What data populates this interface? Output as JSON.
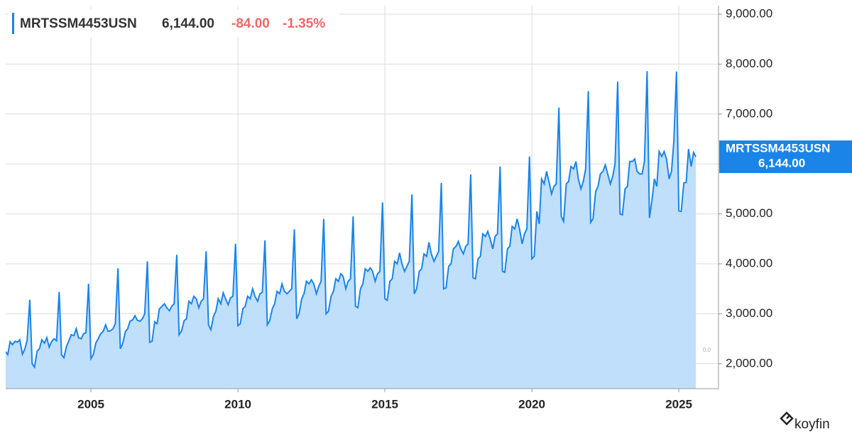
{
  "chart_data": {
    "type": "area",
    "x": [
      2002.08,
      2002.17,
      2002.25,
      2002.33,
      2002.42,
      2002.5,
      2002.58,
      2002.67,
      2002.75,
      2002.83,
      2002.92,
      2003.0,
      2003.08,
      2003.17,
      2003.25,
      2003.33,
      2003.42,
      2003.5,
      2003.58,
      2003.67,
      2003.75,
      2003.83,
      2003.92,
      2004.0,
      2004.08,
      2004.17,
      2004.25,
      2004.33,
      2004.42,
      2004.5,
      2004.58,
      2004.67,
      2004.75,
      2004.83,
      2004.92,
      2005.0,
      2005.08,
      2005.17,
      2005.25,
      2005.33,
      2005.42,
      2005.5,
      2005.58,
      2005.67,
      2005.75,
      2005.83,
      2005.92,
      2006.0,
      2006.08,
      2006.17,
      2006.25,
      2006.33,
      2006.42,
      2006.5,
      2006.58,
      2006.67,
      2006.75,
      2006.83,
      2006.92,
      2007.0,
      2007.08,
      2007.17,
      2007.25,
      2007.33,
      2007.42,
      2007.5,
      2007.58,
      2007.67,
      2007.75,
      2007.83,
      2007.92,
      2008.0,
      2008.08,
      2008.17,
      2008.25,
      2008.33,
      2008.42,
      2008.5,
      2008.58,
      2008.67,
      2008.75,
      2008.83,
      2008.92,
      2009.0,
      2009.08,
      2009.17,
      2009.25,
      2009.33,
      2009.42,
      2009.5,
      2009.58,
      2009.67,
      2009.75,
      2009.83,
      2009.92,
      2010.0,
      2010.08,
      2010.17,
      2010.25,
      2010.33,
      2010.42,
      2010.5,
      2010.58,
      2010.67,
      2010.75,
      2010.83,
      2010.92,
      2011.0,
      2011.08,
      2011.17,
      2011.25,
      2011.33,
      2011.42,
      2011.5,
      2011.58,
      2011.67,
      2011.75,
      2011.83,
      2011.92,
      2012.0,
      2012.08,
      2012.17,
      2012.25,
      2012.33,
      2012.42,
      2012.5,
      2012.58,
      2012.67,
      2012.75,
      2012.83,
      2012.92,
      2013.0,
      2013.08,
      2013.17,
      2013.25,
      2013.33,
      2013.42,
      2013.5,
      2013.58,
      2013.67,
      2013.75,
      2013.83,
      2013.92,
      2014.0,
      2014.08,
      2014.17,
      2014.25,
      2014.33,
      2014.42,
      2014.5,
      2014.58,
      2014.67,
      2014.75,
      2014.83,
      2014.92,
      2015.0,
      2015.08,
      2015.17,
      2015.25,
      2015.33,
      2015.42,
      2015.5,
      2015.58,
      2015.67,
      2015.75,
      2015.83,
      2015.92,
      2016.0,
      2016.08,
      2016.17,
      2016.25,
      2016.33,
      2016.42,
      2016.5,
      2016.58,
      2016.67,
      2016.75,
      2016.83,
      2016.92,
      2017.0,
      2017.08,
      2017.17,
      2017.25,
      2017.33,
      2017.42,
      2017.5,
      2017.58,
      2017.67,
      2017.75,
      2017.83,
      2017.92,
      2018.0,
      2018.08,
      2018.17,
      2018.25,
      2018.33,
      2018.42,
      2018.5,
      2018.58,
      2018.67,
      2018.75,
      2018.83,
      2018.92,
      2019.0,
      2019.08,
      2019.17,
      2019.25,
      2019.33,
      2019.42,
      2019.5,
      2019.58,
      2019.67,
      2019.75,
      2019.83,
      2019.92,
      2020.0,
      2020.08,
      2020.17,
      2020.25,
      2020.33,
      2020.42,
      2020.5,
      2020.58,
      2020.67,
      2020.75,
      2020.83,
      2020.92,
      2021.0,
      2021.08,
      2021.17,
      2021.25,
      2021.33,
      2021.42,
      2021.5,
      2021.58,
      2021.67,
      2021.75,
      2021.83,
      2021.92,
      2022.0,
      2022.08,
      2022.17,
      2022.25,
      2022.33,
      2022.42,
      2022.5,
      2022.58,
      2022.67,
      2022.75,
      2022.83,
      2022.92,
      2023.0,
      2023.08,
      2023.17,
      2023.25,
      2023.33,
      2023.42,
      2023.5,
      2023.58,
      2023.67,
      2023.75,
      2023.83,
      2023.92,
      2024.0,
      2024.08,
      2024.17,
      2024.25,
      2024.33,
      2024.42,
      2024.5,
      2024.58,
      2024.67,
      2024.75,
      2024.83,
      2024.92,
      2025.0,
      2025.08,
      2025.17,
      2025.25,
      2025.33,
      2025.42,
      2025.5,
      2025.58
    ],
    "series": [
      {
        "name": "MRTSSM4453USN",
        "color": "#1a84e8",
        "fill": "#bfdffb",
        "values": [
          2250,
          2180,
          2440,
          2380,
          2450,
          2430,
          2480,
          2190,
          2290,
          2470,
          3280,
          2000,
          1930,
          2250,
          2300,
          2480,
          2410,
          2520,
          2330,
          2450,
          2500,
          2460,
          3440,
          2180,
          2120,
          2350,
          2460,
          2580,
          2560,
          2700,
          2520,
          2500,
          2600,
          2620,
          3600,
          2100,
          2180,
          2420,
          2500,
          2600,
          2650,
          2780,
          2650,
          2660,
          2700,
          2800,
          3910,
          2300,
          2400,
          2640,
          2700,
          2850,
          2880,
          2960,
          2870,
          2850,
          2900,
          3000,
          4050,
          2430,
          2450,
          2840,
          2800,
          3100,
          3150,
          3200,
          3120,
          3060,
          3150,
          3200,
          4180,
          2580,
          2650,
          2860,
          2900,
          3250,
          3200,
          3350,
          3300,
          3120,
          3250,
          3300,
          4250,
          2780,
          2680,
          2950,
          3050,
          3300,
          3200,
          3420,
          3300,
          3180,
          3320,
          3350,
          4400,
          2760,
          2800,
          3100,
          3150,
          3350,
          3300,
          3500,
          3350,
          3250,
          3400,
          3430,
          4470,
          2780,
          2860,
          3100,
          3200,
          3450,
          3400,
          3600,
          3450,
          3400,
          3450,
          3500,
          4690,
          2900,
          3000,
          3300,
          3400,
          3650,
          3600,
          3680,
          3600,
          3400,
          3550,
          3650,
          4900,
          3000,
          3050,
          3350,
          3450,
          3700,
          3650,
          3800,
          3750,
          3500,
          3650,
          3700,
          4950,
          3150,
          3120,
          3500,
          3600,
          3900,
          3850,
          3920,
          3850,
          3650,
          3800,
          3850,
          5230,
          3300,
          3270,
          3650,
          3700,
          4050,
          4000,
          4220,
          4000,
          3850,
          3950,
          4050,
          5390,
          3400,
          3500,
          3850,
          3900,
          4200,
          4150,
          4430,
          4200,
          4050,
          4150,
          4250,
          5620,
          3500,
          3520,
          3950,
          4000,
          4300,
          4350,
          4450,
          4300,
          4200,
          4350,
          4400,
          5790,
          3720,
          3700,
          4100,
          4150,
          4600,
          4550,
          4650,
          4500,
          4300,
          4550,
          4600,
          5950,
          3850,
          3830,
          4300,
          4350,
          4750,
          4700,
          4900,
          4700,
          4400,
          4600,
          4700,
          6150,
          4100,
          4150,
          5050,
          4800,
          5700,
          5600,
          5850,
          5650,
          5400,
          5550,
          5600,
          7130,
          4950,
          4850,
          5600,
          5650,
          5950,
          5900,
          6050,
          5700,
          5500,
          5650,
          5900,
          7460,
          4830,
          4900,
          5450,
          5550,
          5800,
          5850,
          5980,
          5800,
          5600,
          5750,
          6000,
          7650,
          5000,
          4980,
          5500,
          5550,
          6050,
          6050,
          6100,
          5850,
          5800,
          5800,
          6050,
          7860,
          4920,
          5250,
          5700,
          5550,
          6250,
          6150,
          6250,
          6100,
          5700,
          5850,
          6450,
          7850,
          5060,
          5050,
          5620,
          5630,
          6300,
          5950,
          6228,
          6144
        ]
      }
    ],
    "last_value_label": "6,144.00",
    "change": "-84.00",
    "change_percent": "-1.35%",
    "annotation": "0.0",
    "brand": "koyfin",
    "xlim": [
      2002.1,
      2026.35
    ],
    "xticks": [
      2005,
      2010,
      2015,
      2020,
      2025
    ],
    "ylim": [
      1500,
      9170
    ],
    "yticks": [
      {
        "value": 2000,
        "label": "2,000.00"
      },
      {
        "value": 3000,
        "label": "3,000.00"
      },
      {
        "value": 4000,
        "label": "4,000.00"
      },
      {
        "value": 5000,
        "label": "5,000.00"
      },
      {
        "value": 6000,
        "label": "6,000.00"
      },
      {
        "value": 7000,
        "label": "7,000.00"
      },
      {
        "value": 8000,
        "label": "8,000.00"
      },
      {
        "value": 9000,
        "label": "9,000.00"
      }
    ],
    "grid": true
  }
}
